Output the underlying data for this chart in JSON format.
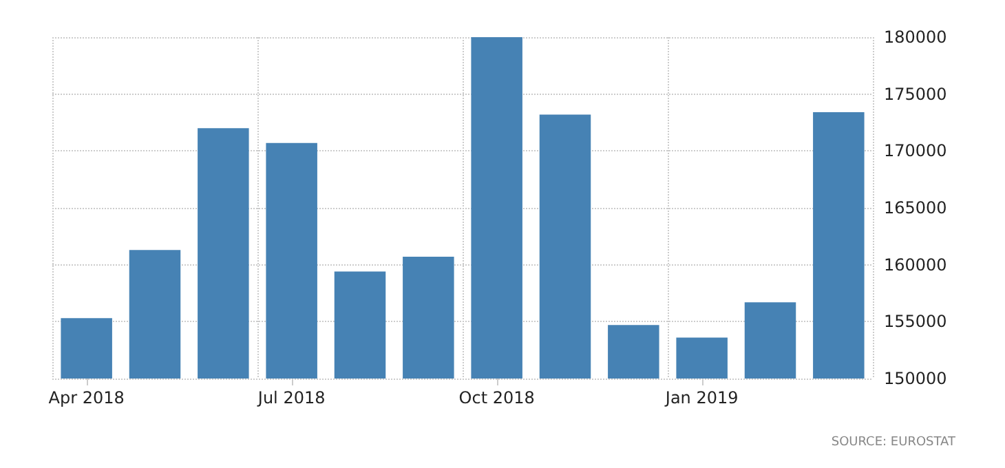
{
  "chart_data": {
    "type": "bar",
    "categories": [
      "Apr 2018",
      null,
      null,
      "Jul 2018",
      null,
      null,
      "Oct 2018",
      null,
      null,
      "Jan 2019",
      null,
      null
    ],
    "values": [
      155300,
      161300,
      172000,
      170700,
      159400,
      160700,
      180000,
      173200,
      154700,
      153600,
      156700,
      173400
    ],
    "color": "#4682b4",
    "ylim": [
      150000,
      180000
    ],
    "yticks": [
      150000,
      155000,
      160000,
      165000,
      170000,
      175000,
      180000
    ],
    "grid": true,
    "annotations": [
      "SOURCE: EUROSTAT"
    ]
  }
}
